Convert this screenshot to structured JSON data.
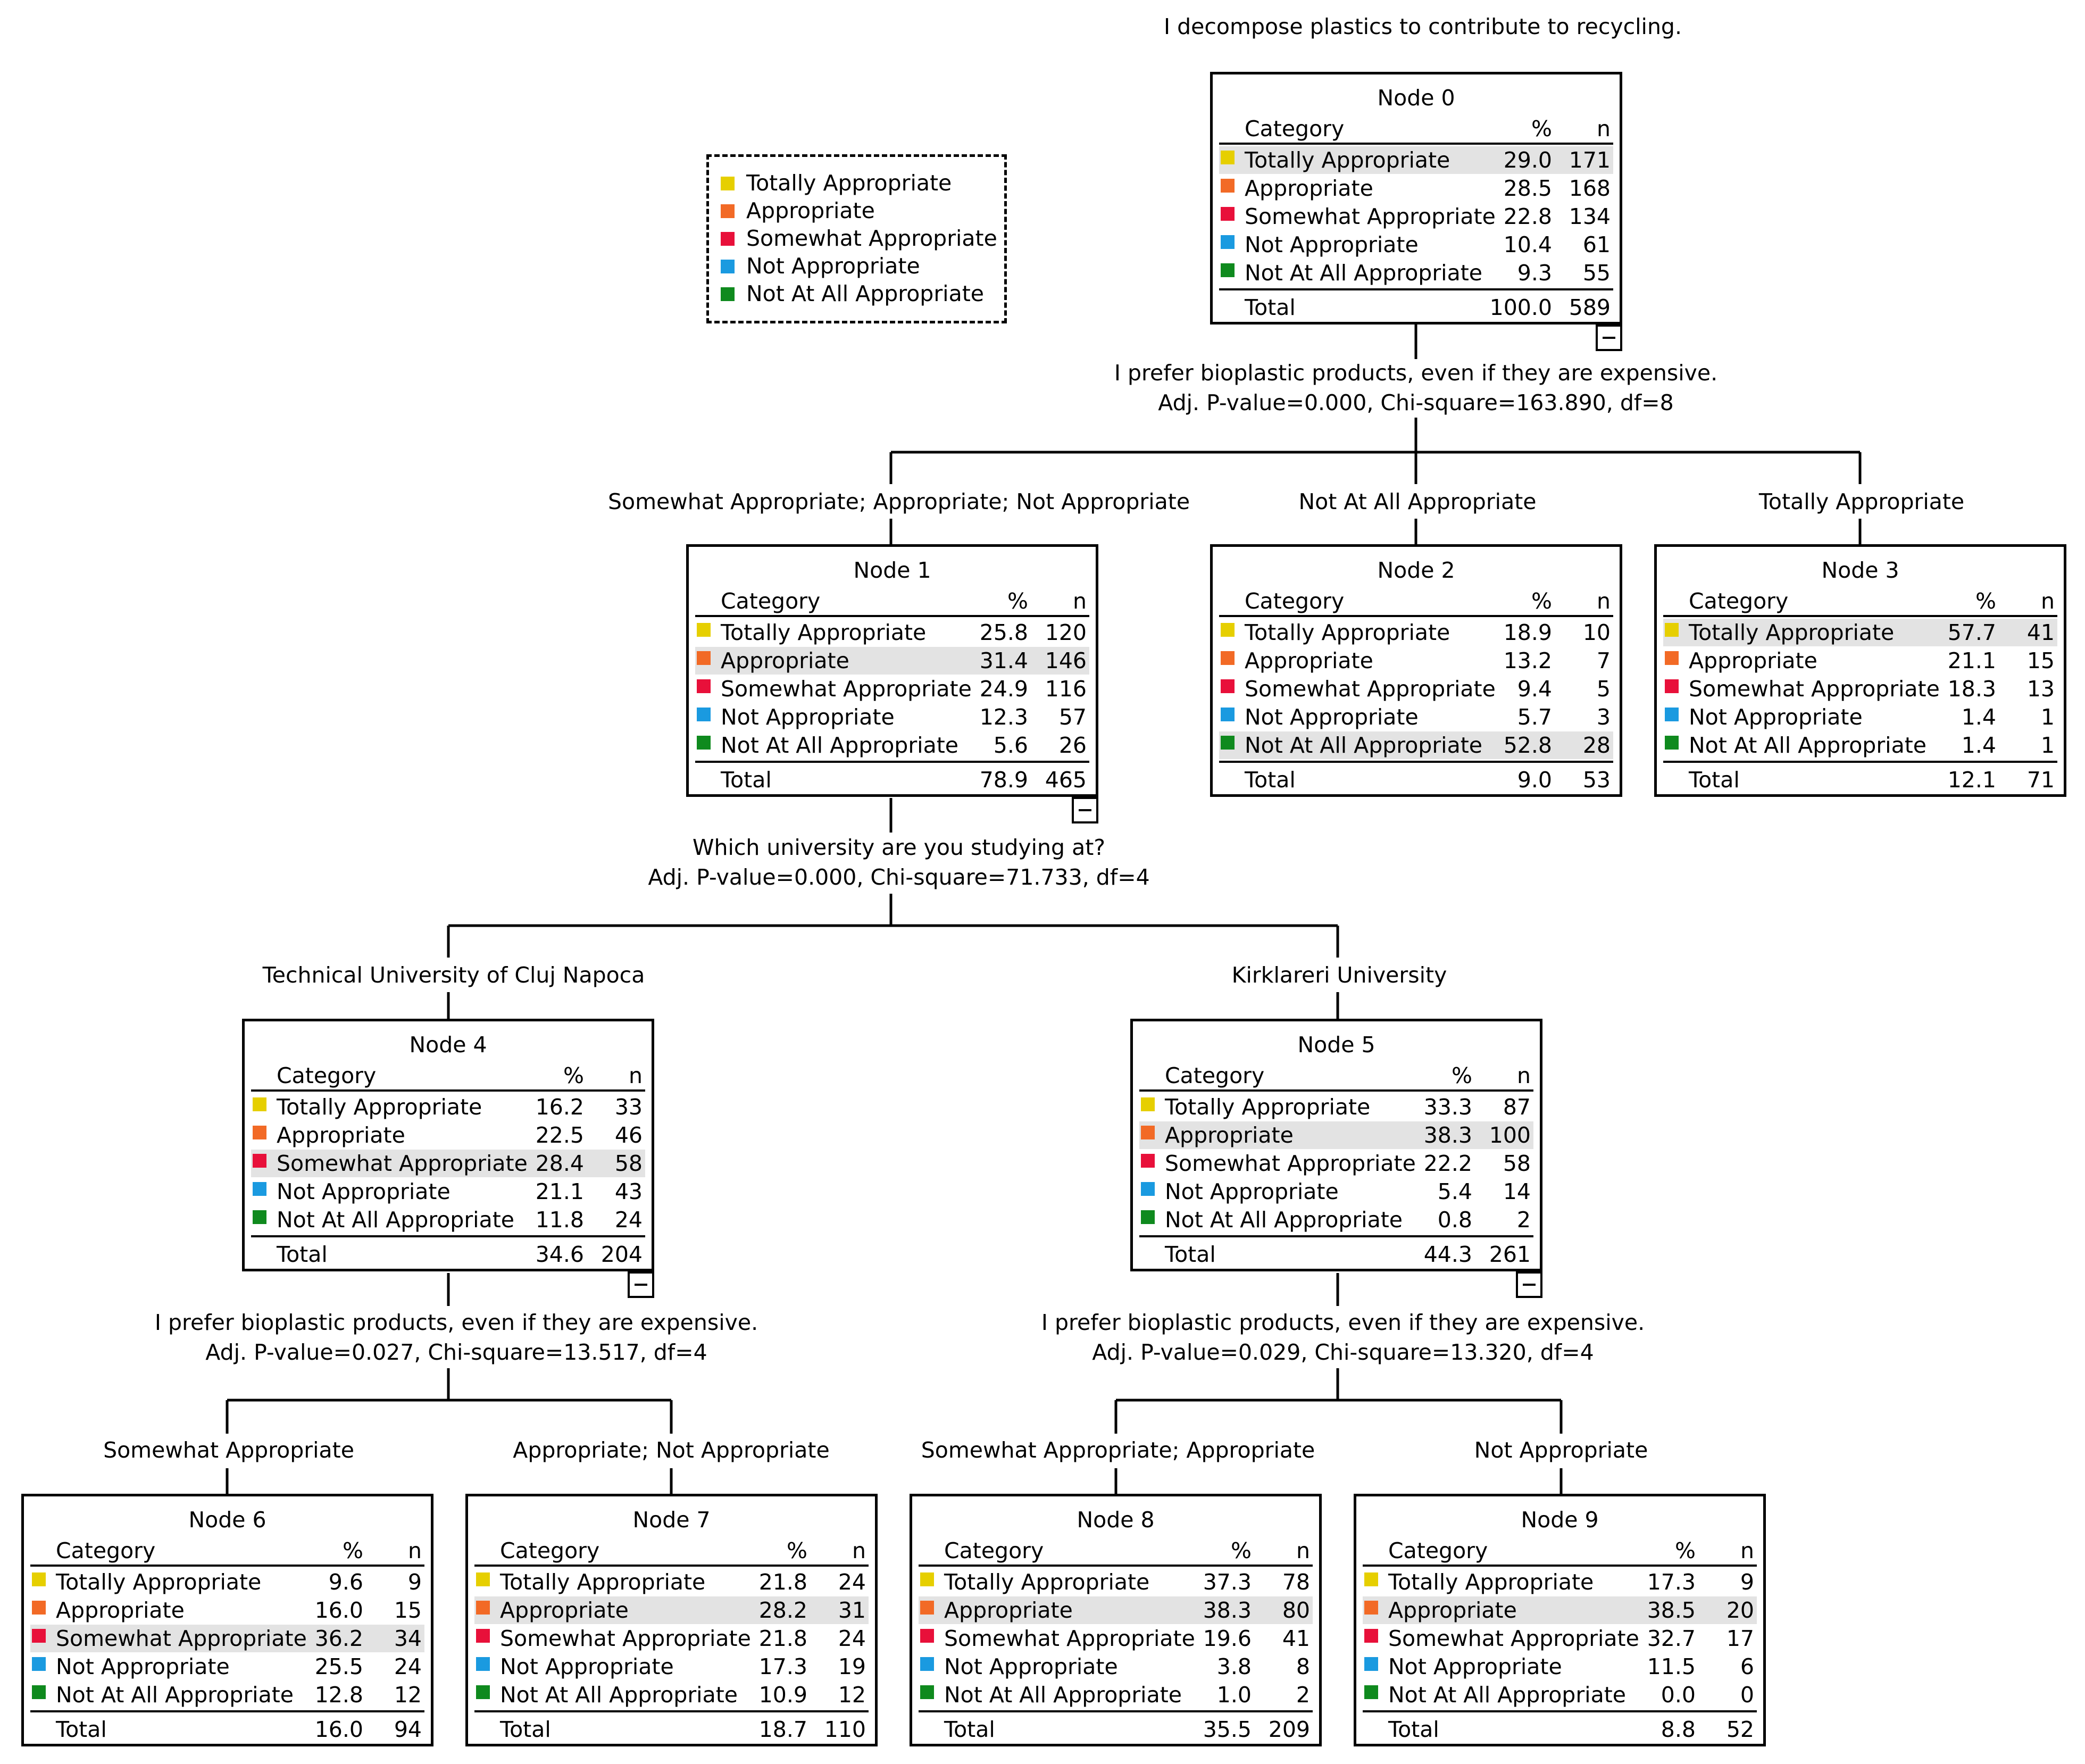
{
  "title": "I decompose plastics to contribute to recycling.",
  "legend": [
    {
      "label": "Totally Appropriate",
      "color": "#e6cf00"
    },
    {
      "label": "Appropriate",
      "color": "#f26a26"
    },
    {
      "label": "Somewhat Appropriate",
      "color": "#e8103a"
    },
    {
      "label": "Not Appropriate",
      "color": "#1a9ae0"
    },
    {
      "label": "Not At All Appropriate",
      "color": "#0f8a1e"
    }
  ],
  "columns": {
    "category": "Category",
    "pct": "%",
    "n": "n"
  },
  "total_label": "Total",
  "nodes": [
    {
      "id": 0,
      "title": "Node 0",
      "highlight": 0,
      "rows": [
        {
          "label": "Totally Appropriate",
          "pct": "29.0",
          "n": "171"
        },
        {
          "label": "Appropriate",
          "pct": "28.5",
          "n": "168"
        },
        {
          "label": "Somewhat Appropriate",
          "pct": "22.8",
          "n": "134"
        },
        {
          "label": "Not Appropriate",
          "pct": "10.4",
          "n": "61"
        },
        {
          "label": "Not At All Appropriate",
          "pct": "9.3",
          "n": "55"
        }
      ],
      "total": {
        "pct": "100.0",
        "n": "589"
      }
    },
    {
      "id": 1,
      "title": "Node 1",
      "highlight": 1,
      "rows": [
        {
          "label": "Totally Appropriate",
          "pct": "25.8",
          "n": "120"
        },
        {
          "label": "Appropriate",
          "pct": "31.4",
          "n": "146"
        },
        {
          "label": "Somewhat Appropriate",
          "pct": "24.9",
          "n": "116"
        },
        {
          "label": "Not Appropriate",
          "pct": "12.3",
          "n": "57"
        },
        {
          "label": "Not At All Appropriate",
          "pct": "5.6",
          "n": "26"
        }
      ],
      "total": {
        "pct": "78.9",
        "n": "465"
      }
    },
    {
      "id": 2,
      "title": "Node 2",
      "highlight": 4,
      "rows": [
        {
          "label": "Totally Appropriate",
          "pct": "18.9",
          "n": "10"
        },
        {
          "label": "Appropriate",
          "pct": "13.2",
          "n": "7"
        },
        {
          "label": "Somewhat Appropriate",
          "pct": "9.4",
          "n": "5"
        },
        {
          "label": "Not Appropriate",
          "pct": "5.7",
          "n": "3"
        },
        {
          "label": "Not At All Appropriate",
          "pct": "52.8",
          "n": "28"
        }
      ],
      "total": {
        "pct": "9.0",
        "n": "53"
      }
    },
    {
      "id": 3,
      "title": "Node 3",
      "highlight": 0,
      "rows": [
        {
          "label": "Totally Appropriate",
          "pct": "57.7",
          "n": "41"
        },
        {
          "label": "Appropriate",
          "pct": "21.1",
          "n": "15"
        },
        {
          "label": "Somewhat Appropriate",
          "pct": "18.3",
          "n": "13"
        },
        {
          "label": "Not Appropriate",
          "pct": "1.4",
          "n": "1"
        },
        {
          "label": "Not At All Appropriate",
          "pct": "1.4",
          "n": "1"
        }
      ],
      "total": {
        "pct": "12.1",
        "n": "71"
      }
    },
    {
      "id": 4,
      "title": "Node 4",
      "highlight": 2,
      "rows": [
        {
          "label": "Totally Appropriate",
          "pct": "16.2",
          "n": "33"
        },
        {
          "label": "Appropriate",
          "pct": "22.5",
          "n": "46"
        },
        {
          "label": "Somewhat Appropriate",
          "pct": "28.4",
          "n": "58"
        },
        {
          "label": "Not Appropriate",
          "pct": "21.1",
          "n": "43"
        },
        {
          "label": "Not At All Appropriate",
          "pct": "11.8",
          "n": "24"
        }
      ],
      "total": {
        "pct": "34.6",
        "n": "204"
      }
    },
    {
      "id": 5,
      "title": "Node 5",
      "highlight": 1,
      "rows": [
        {
          "label": "Totally Appropriate",
          "pct": "33.3",
          "n": "87"
        },
        {
          "label": "Appropriate",
          "pct": "38.3",
          "n": "100"
        },
        {
          "label": "Somewhat Appropriate",
          "pct": "22.2",
          "n": "58"
        },
        {
          "label": "Not Appropriate",
          "pct": "5.4",
          "n": "14"
        },
        {
          "label": "Not At All Appropriate",
          "pct": "0.8",
          "n": "2"
        }
      ],
      "total": {
        "pct": "44.3",
        "n": "261"
      }
    },
    {
      "id": 6,
      "title": "Node 6",
      "highlight": 2,
      "rows": [
        {
          "label": "Totally Appropriate",
          "pct": "9.6",
          "n": "9"
        },
        {
          "label": "Appropriate",
          "pct": "16.0",
          "n": "15"
        },
        {
          "label": "Somewhat Appropriate",
          "pct": "36.2",
          "n": "34"
        },
        {
          "label": "Not Appropriate",
          "pct": "25.5",
          "n": "24"
        },
        {
          "label": "Not At All Appropriate",
          "pct": "12.8",
          "n": "12"
        }
      ],
      "total": {
        "pct": "16.0",
        "n": "94"
      }
    },
    {
      "id": 7,
      "title": "Node 7",
      "highlight": 1,
      "rows": [
        {
          "label": "Totally Appropriate",
          "pct": "21.8",
          "n": "24"
        },
        {
          "label": "Appropriate",
          "pct": "28.2",
          "n": "31"
        },
        {
          "label": "Somewhat Appropriate",
          "pct": "21.8",
          "n": "24"
        },
        {
          "label": "Not Appropriate",
          "pct": "17.3",
          "n": "19"
        },
        {
          "label": "Not At All Appropriate",
          "pct": "10.9",
          "n": "12"
        }
      ],
      "total": {
        "pct": "18.7",
        "n": "110"
      }
    },
    {
      "id": 8,
      "title": "Node 8",
      "highlight": 1,
      "rows": [
        {
          "label": "Totally Appropriate",
          "pct": "37.3",
          "n": "78"
        },
        {
          "label": "Appropriate",
          "pct": "38.3",
          "n": "80"
        },
        {
          "label": "Somewhat Appropriate",
          "pct": "19.6",
          "n": "41"
        },
        {
          "label": "Not Appropriate",
          "pct": "3.8",
          "n": "8"
        },
        {
          "label": "Not At All Appropriate",
          "pct": "1.0",
          "n": "2"
        }
      ],
      "total": {
        "pct": "35.5",
        "n": "209"
      }
    },
    {
      "id": 9,
      "title": "Node 9",
      "highlight": 1,
      "rows": [
        {
          "label": "Totally Appropriate",
          "pct": "17.3",
          "n": "9"
        },
        {
          "label": "Appropriate",
          "pct": "38.5",
          "n": "20"
        },
        {
          "label": "Somewhat Appropriate",
          "pct": "32.7",
          "n": "17"
        },
        {
          "label": "Not Appropriate",
          "pct": "11.5",
          "n": "6"
        },
        {
          "label": "Not At All Appropriate",
          "pct": "0.0",
          "n": "0"
        }
      ],
      "total": {
        "pct": "8.8",
        "n": "52"
      }
    }
  ],
  "splits": {
    "node0": {
      "question": "I prefer bioplastic products, even if they are expensive.",
      "stats": "Adj. P-value=0.000, Chi-square=163.890, df=8"
    },
    "node1": {
      "question": "Which university are you studying at?",
      "stats": "Adj. P-value=0.000, Chi-square=71.733, df=4"
    },
    "node4": {
      "question": "I prefer bioplastic products, even if they are expensive.",
      "stats": "Adj. P-value=0.027, Chi-square=13.517, df=4"
    },
    "node5": {
      "question": "I prefer bioplastic products, even if they are expensive.",
      "stats": "Adj. P-value=0.029, Chi-square=13.320, df=4"
    }
  },
  "branches": {
    "to_node1": "Somewhat Appropriate; Appropriate; Not Appropriate",
    "to_node2": "Not At All Appropriate",
    "to_node3": "Totally Appropriate",
    "to_node4": "Technical University of Cluj Napoca",
    "to_node5": "Kirklareri University",
    "to_node6": "Somewhat Appropriate",
    "to_node7": "Appropriate; Not Appropriate",
    "to_node8": "Somewhat Appropriate; Appropriate",
    "to_node9": "Not Appropriate"
  },
  "icons": {
    "collapse": "minus-box-icon",
    "swatch": "color-swatch-icon"
  }
}
